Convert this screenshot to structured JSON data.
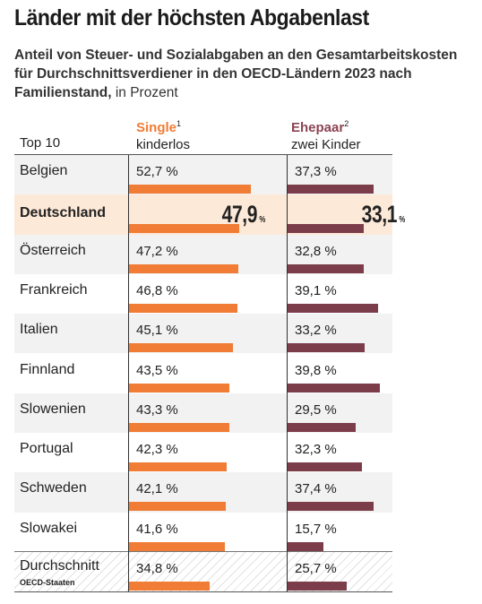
{
  "title": "Länder mit der höchsten Abgabenlast",
  "subtitle": {
    "bold": "Anteil von Steuer- und Sozialabgaben an den Gesamtarbeitskosten für Durchschnittsverdiener in den OECD-Ländern 2023 nach Familienstand,",
    "normal": " in Prozent"
  },
  "columns": {
    "rank_label": "Top 10",
    "single": {
      "name": "Single",
      "footnote": "1",
      "sub": "kinderlos",
      "color": "#f07c35"
    },
    "couple": {
      "name": "Ehepaar",
      "footnote": "2",
      "sub": "zwei Kinder",
      "color": "#7c3d4b"
    }
  },
  "chart_data": {
    "type": "bar",
    "orientation": "horizontal",
    "categories": [
      "Belgien",
      "Deutschland",
      "Österreich",
      "Frankreich",
      "Italien",
      "Finnland",
      "Slowenien",
      "Portugal",
      "Schweden",
      "Slowakei",
      "Durchschnitt"
    ],
    "category_sublabels": {
      "Durchschnitt": "OECD-Staaten"
    },
    "highlight": "Deutschland",
    "series": [
      {
        "name": "Single kinderlos",
        "values": [
          52.7,
          47.9,
          47.2,
          46.8,
          45.1,
          43.5,
          43.3,
          42.3,
          42.1,
          41.6,
          34.8
        ]
      },
      {
        "name": "Ehepaar zwei Kinder",
        "values": [
          37.3,
          33.1,
          32.8,
          39.1,
          33.2,
          39.8,
          29.5,
          32.3,
          37.4,
          15.7,
          25.7
        ]
      }
    ],
    "unit": "%",
    "value_format": "de-comma-1dp"
  }
}
